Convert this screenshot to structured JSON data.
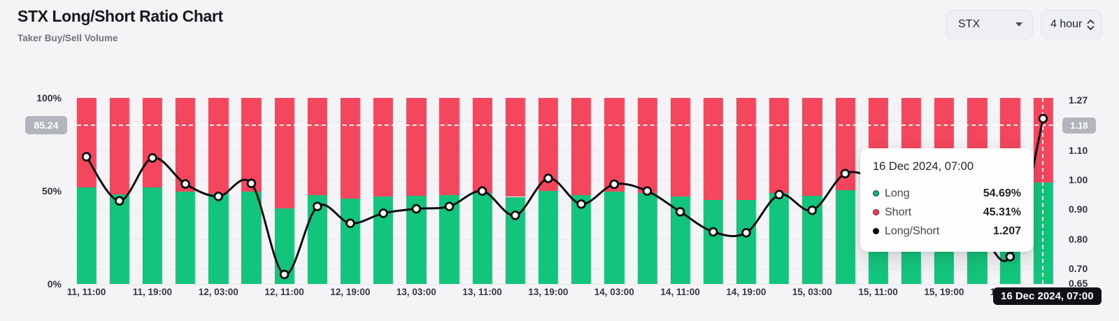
{
  "header": {
    "title": "STX Long/Short Ratio Chart",
    "subtitle": "Taker Buy/Sell Volume"
  },
  "controls": {
    "coin_selector": {
      "value": "STX"
    },
    "interval_selector": {
      "value": "4 hour"
    }
  },
  "chart_data": {
    "type": "stacked-bar-with-line",
    "title": "STX Long/Short Ratio Chart",
    "x_tick_labels": [
      "11, 11:00",
      "11, 19:00",
      "12, 03:00",
      "12, 11:00",
      "12, 19:00",
      "13, 03:00",
      "13, 11:00",
      "13, 19:00",
      "14, 03:00",
      "14, 11:00",
      "14, 19:00",
      "15, 03:00",
      "15, 11:00",
      "15, 19:00",
      "16, 03:00"
    ],
    "series": [
      {
        "name": "Long",
        "type": "bar",
        "unit": "%",
        "color": "#13c57c",
        "values": [
          51.88,
          48.16,
          51.78,
          49.65,
          48.56,
          49.7,
          40.48,
          47.64,
          46.03,
          47.01,
          47.42,
          47.64,
          49.03,
          46.81,
          50.12,
          47.86,
          49.62,
          49.03,
          47.15,
          45.18,
          45.08,
          48.72,
          47.28,
          50.52,
          50.0,
          48.98,
          48.19,
          45.95,
          42.53,
          54.69
        ]
      },
      {
        "name": "Short",
        "type": "bar",
        "unit": "%",
        "color": "#f4465d",
        "values": [
          48.12,
          51.84,
          48.22,
          50.35,
          51.44,
          50.3,
          59.52,
          52.36,
          53.97,
          52.99,
          52.58,
          52.36,
          50.97,
          53.19,
          49.88,
          52.14,
          50.38,
          50.97,
          52.85,
          54.82,
          54.92,
          51.28,
          52.72,
          49.48,
          50.0,
          51.02,
          51.81,
          54.05,
          57.47,
          45.31
        ]
      },
      {
        "name": "Long/Short",
        "type": "line",
        "color": "#0d0e10",
        "values": [
          1.078,
          0.929,
          1.074,
          0.986,
          0.944,
          0.988,
          0.68,
          0.91,
          0.853,
          0.887,
          0.902,
          0.91,
          0.962,
          0.88,
          1.005,
          0.918,
          0.985,
          0.962,
          0.892,
          0.824,
          0.821,
          0.95,
          0.897,
          1.021,
          1.0,
          0.96,
          0.93,
          0.85,
          0.74,
          1.207
        ]
      }
    ],
    "left_axis": {
      "ticks": [
        "100%",
        "50%",
        "0%"
      ],
      "min": 0,
      "max": 100
    },
    "right_axis": {
      "ticks": [
        "1.27",
        "1.20",
        "1.10",
        "1.00",
        "0.90",
        "0.80",
        "0.70",
        "0.65"
      ],
      "top": 1.277,
      "bottom": 0.648
    },
    "gridline_values": [
      1.2,
      1.1,
      1.0,
      0.9,
      0.8,
      0.7
    ],
    "reference_line": {
      "left_badge": "85.24",
      "right_badge": "1.18",
      "percent": 85.24
    },
    "crosshair": {
      "index": 29,
      "time_label": "16 Dec 2024, 07:00"
    }
  },
  "tooltip": {
    "title": "16 Dec 2024, 07:00",
    "rows": [
      {
        "label": "Long",
        "value": "54.69%",
        "dot_color": "#17b873"
      },
      {
        "label": "Short",
        "value": "45.31%",
        "dot_color": "#ee3f57"
      },
      {
        "label": "Long/Short",
        "value": "1.207",
        "dot_color": "#101114"
      }
    ]
  }
}
